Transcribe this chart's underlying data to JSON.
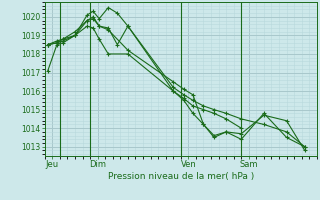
{
  "bg_color": "#cde8ea",
  "grid_major_color": "#a8c8cc",
  "grid_minor_color": "#b8d8dc",
  "line_color": "#1a6b1a",
  "title": "Pression niveau de la mer( hPa )",
  "ylim": [
    1012.5,
    1020.8
  ],
  "yticks": [
    1013,
    1014,
    1015,
    1016,
    1017,
    1018,
    1019,
    1020
  ],
  "day_labels": [
    "Jeu",
    "Dim",
    "Ven",
    "Sam"
  ],
  "day_positions": [
    0.5,
    3.5,
    9.5,
    13.5
  ],
  "vline_positions": [
    1.0,
    3.0,
    9.0,
    13.0
  ],
  "xlim": [
    0,
    18
  ],
  "series1_x": [
    0.2,
    0.8,
    1.2,
    2.0,
    2.8,
    3.2,
    3.6,
    4.2,
    4.8,
    5.5,
    8.5,
    9.2,
    9.8,
    10.5,
    11.2,
    12.0,
    13.0
  ],
  "series1_y": [
    1017.1,
    1018.5,
    1018.6,
    1019.0,
    1020.1,
    1020.3,
    1019.9,
    1020.5,
    1020.2,
    1019.5,
    1016.0,
    1015.6,
    1015.2,
    1015.0,
    1014.8,
    1014.5,
    1014.0
  ],
  "series2_x": [
    0.2,
    0.8,
    1.2,
    2.0,
    2.8,
    3.2,
    3.6,
    4.2,
    4.8,
    5.5,
    8.5,
    9.2,
    9.8,
    10.5,
    11.2,
    12.0,
    13.0,
    14.5,
    16.0,
    17.2
  ],
  "series2_y": [
    1018.5,
    1018.6,
    1018.8,
    1019.0,
    1019.8,
    1020.0,
    1019.5,
    1019.4,
    1018.5,
    1019.5,
    1016.2,
    1015.8,
    1015.5,
    1015.2,
    1015.0,
    1014.8,
    1014.5,
    1014.2,
    1013.8,
    1013.0
  ],
  "series3_x": [
    0.2,
    0.8,
    1.2,
    2.0,
    2.8,
    3.2,
    3.6,
    4.2,
    5.5,
    8.5,
    9.2,
    9.8,
    10.5,
    11.2,
    12.0,
    13.0,
    14.5,
    16.0,
    17.2
  ],
  "series3_y": [
    1018.5,
    1018.7,
    1018.8,
    1019.2,
    1019.8,
    1019.9,
    1019.5,
    1019.3,
    1018.2,
    1016.5,
    1016.1,
    1015.8,
    1014.2,
    1013.6,
    1013.8,
    1013.4,
    1014.8,
    1013.5,
    1013.0
  ],
  "series4_x": [
    0.2,
    0.8,
    1.2,
    2.0,
    2.8,
    3.2,
    3.6,
    4.2,
    5.5,
    8.5,
    9.2,
    9.8,
    10.5,
    11.2,
    12.0,
    13.0,
    14.5,
    16.0,
    17.2
  ],
  "series4_y": [
    1018.5,
    1018.6,
    1018.7,
    1019.0,
    1019.5,
    1019.4,
    1018.8,
    1018.0,
    1018.0,
    1016.0,
    1015.5,
    1014.8,
    1014.2,
    1013.5,
    1013.8,
    1013.7,
    1014.7,
    1014.4,
    1012.8
  ]
}
